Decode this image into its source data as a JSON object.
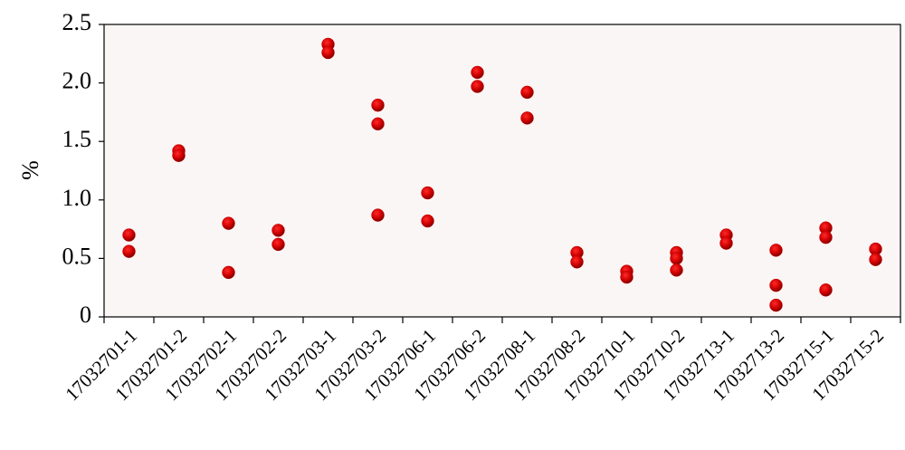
{
  "chart_data": {
    "type": "scatter",
    "y_label": "%",
    "categories": [
      "17032701-1",
      "17032701-2",
      "17032702-1",
      "17032702-2",
      "17032703-1",
      "17032703-2",
      "17032706-1",
      "17032706-2",
      "17032708-1",
      "17032708-2",
      "17032710-1",
      "17032710-2",
      "17032713-1",
      "17032713-2",
      "17032715-1",
      "17032715-2"
    ],
    "series": [
      {
        "color": "#c80000",
        "values": [
          0.7,
          1.42,
          0.8,
          0.74,
          2.33,
          1.81,
          1.06,
          2.09,
          1.92,
          0.55,
          0.39,
          0.55,
          0.7,
          0.57,
          0.76,
          0.58
        ]
      },
      {
        "color": "#c80000",
        "values": [
          0.56,
          1.38,
          0.38,
          0.62,
          2.26,
          1.65,
          0.82,
          1.97,
          1.7,
          0.47,
          0.34,
          0.5,
          0.63,
          0.27,
          0.68,
          0.49
        ]
      },
      {
        "color": "#c80000",
        "values": [
          null,
          null,
          null,
          null,
          null,
          0.87,
          null,
          null,
          null,
          null,
          null,
          0.4,
          null,
          0.1,
          0.23,
          null
        ]
      }
    ],
    "ylim": [
      0,
      2.5
    ],
    "yticks": [
      0,
      0.5,
      {
        "value": 1,
        "label": "1.0"
      },
      1.5,
      {
        "value": 2,
        "label": "2.0"
      },
      2.5
    ]
  }
}
